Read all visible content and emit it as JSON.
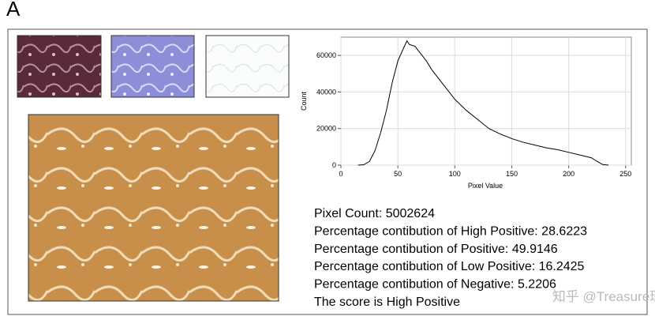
{
  "panel_label": "A",
  "chart_data": {
    "type": "line",
    "x_label": "Pixel Value",
    "y_label": "Count",
    "x": [
      15,
      20,
      25,
      30,
      35,
      40,
      45,
      50,
      55,
      58,
      60,
      65,
      70,
      75,
      80,
      90,
      100,
      110,
      120,
      130,
      140,
      150,
      160,
      170,
      180,
      190,
      200,
      210,
      220,
      225,
      230,
      235
    ],
    "values": [
      0,
      200,
      2000,
      8000,
      18000,
      30000,
      45000,
      57000,
      64000,
      68000,
      66000,
      65000,
      61000,
      57000,
      52000,
      44000,
      36000,
      30000,
      25000,
      20000,
      17000,
      14500,
      12500,
      11000,
      9500,
      8500,
      7000,
      5500,
      4000,
      2000,
      300,
      0
    ],
    "color": "#000000",
    "xlim": [
      0,
      255
    ],
    "ylim": [
      0,
      70000
    ],
    "xticks": [
      0,
      50,
      100,
      150,
      200,
      250
    ],
    "yticks": [
      0,
      20000,
      40000,
      60000
    ],
    "grid": true
  },
  "stats": [
    "Pixel Count: 5002624",
    "Percentage contibution of High Positive:  28.6223",
    "Percentage contibution of Positive:  49.9146",
    "Percentage contibution of Low Positive:  16.2425",
    "Percentage contibution of Negative:  5.2206",
    "The score is High Positive"
  ],
  "watermark": "知乎 @Treasure琛"
}
